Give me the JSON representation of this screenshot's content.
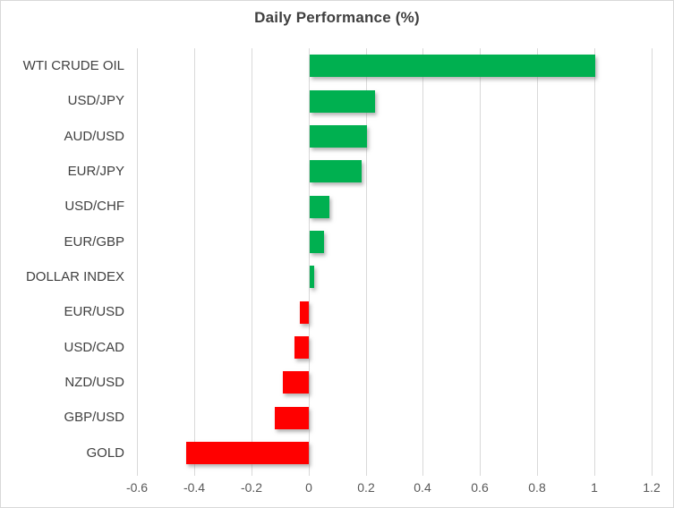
{
  "chart_data": {
    "type": "bar",
    "orientation": "horizontal",
    "title": "Daily Performance (%)",
    "categories": [
      "WTI CRUDE OIL",
      "USD/JPY",
      "AUD/USD",
      "EUR/JPY",
      "USD/CHF",
      "EUR/GBP",
      "DOLLAR INDEX",
      "EUR/USD",
      "USD/CAD",
      "NZD/USD",
      "GBP/USD",
      "GOLD"
    ],
    "values": [
      1.0,
      0.23,
      0.2,
      0.18,
      0.07,
      0.05,
      0.015,
      -0.03,
      -0.05,
      -0.09,
      -0.12,
      -0.43
    ],
    "xlim": [
      -0.6,
      1.2
    ],
    "x_ticks": [
      -0.6,
      -0.4,
      -0.2,
      0,
      0.2,
      0.4,
      0.6,
      0.8,
      1,
      1.2
    ],
    "x_tick_labels": [
      "-0.6",
      "-0.4",
      "-0.2",
      "0",
      "0.2",
      "0.4",
      "0.6",
      "0.8",
      "1",
      "1.2"
    ],
    "grid": true,
    "legend": false,
    "positive_color": "#00b050",
    "negative_color": "#ff0000",
    "gridline_color": "#d9d9d9",
    "title_color": "#3f3f3f",
    "category_label_color": "#404040",
    "tick_label_color": "#595959"
  }
}
